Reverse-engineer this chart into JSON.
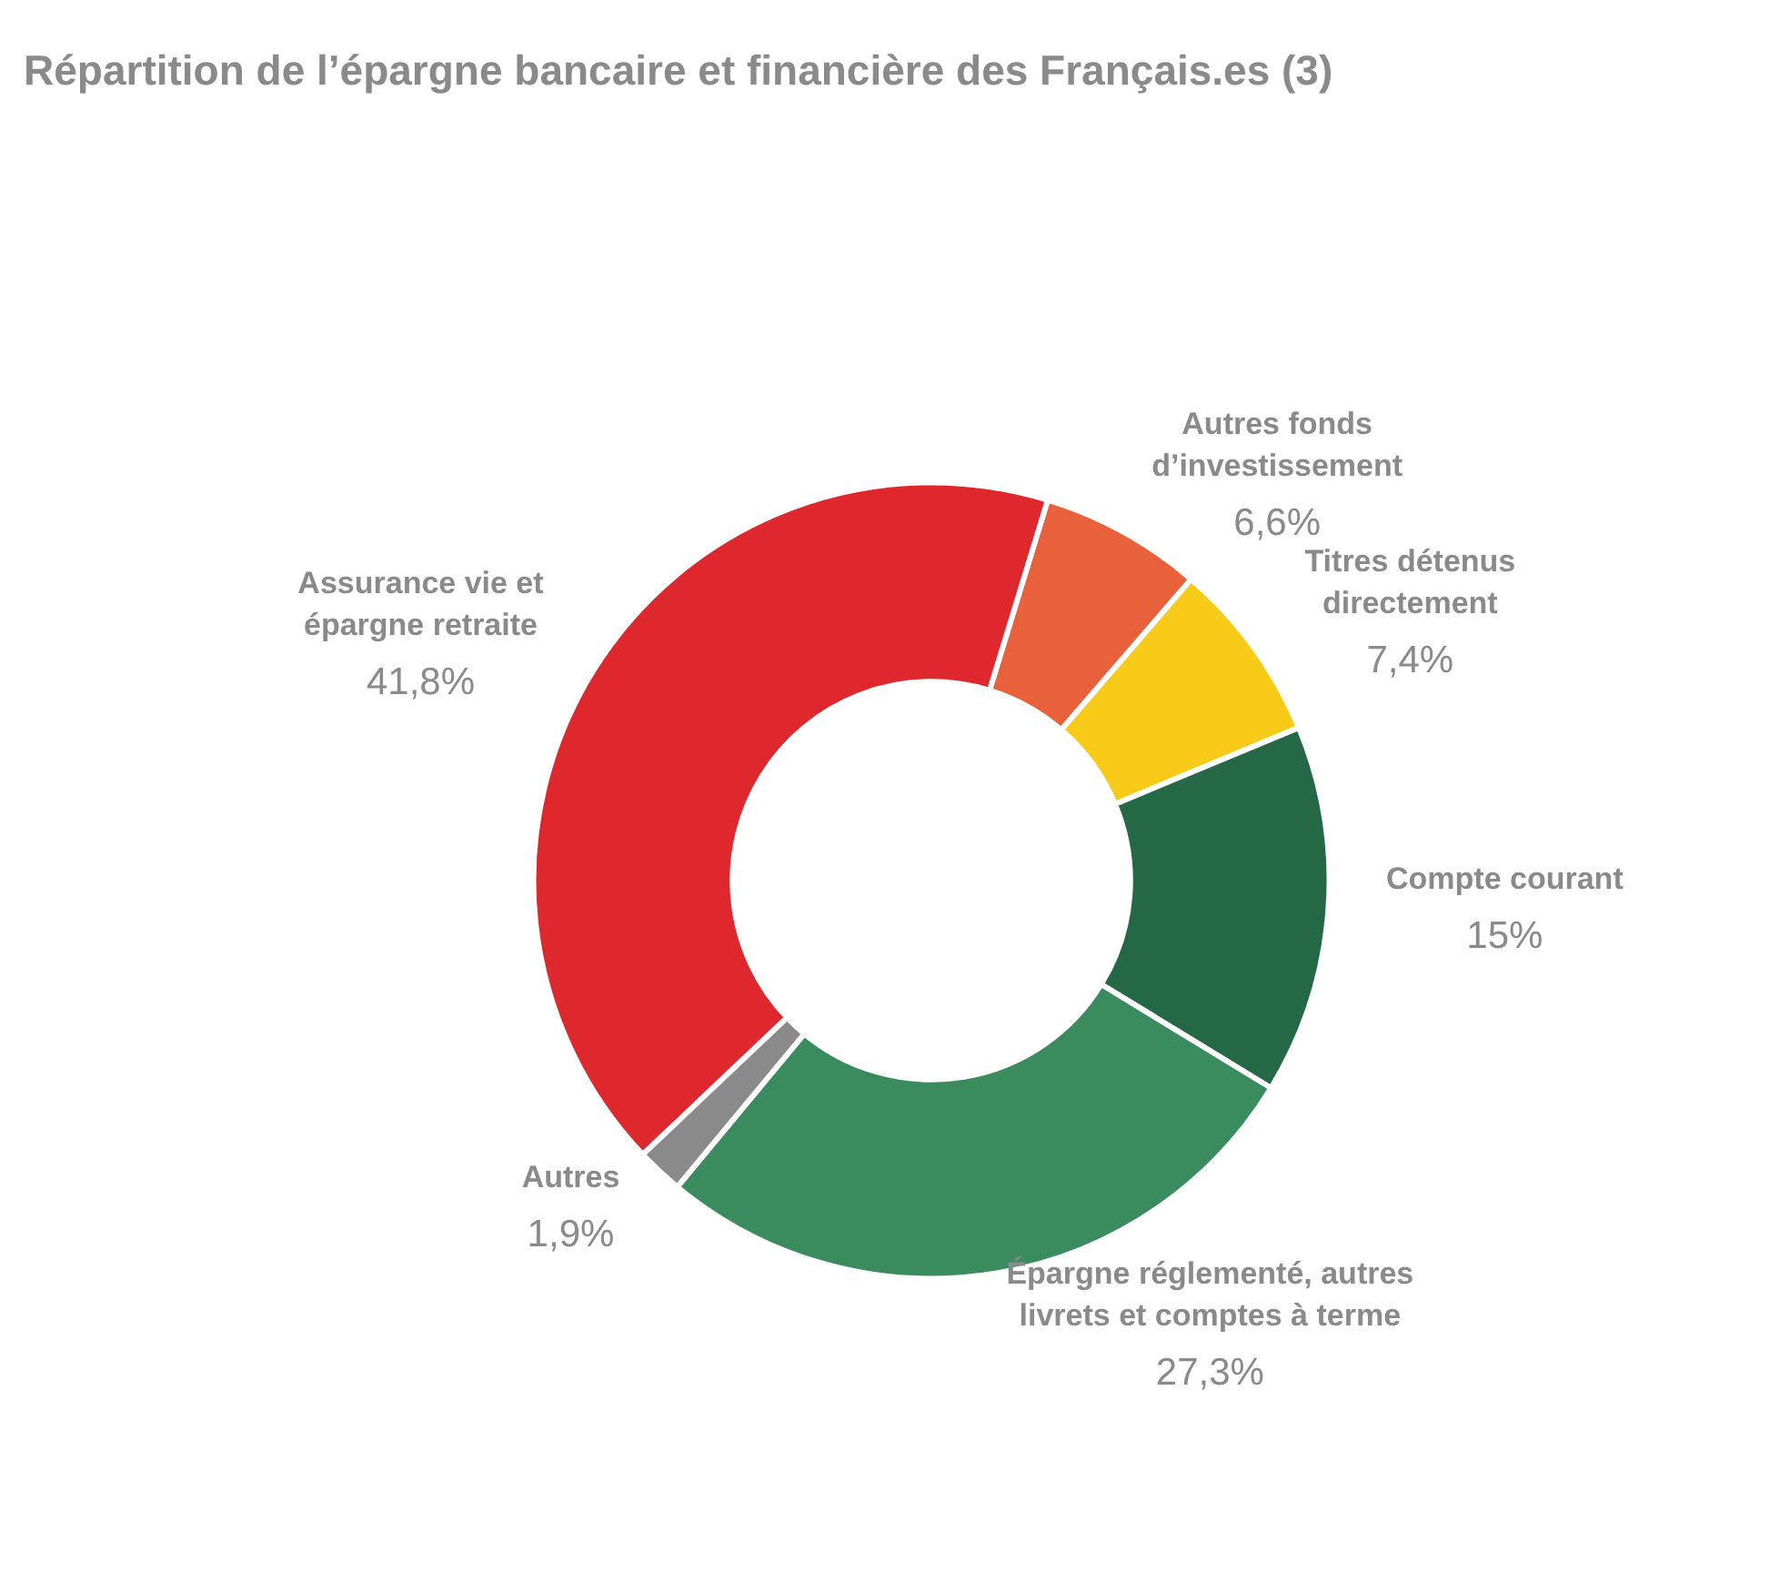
{
  "chart_data": {
    "type": "donut",
    "title": "Répartition de l’épargne bancaire et financière des Français.es (3)",
    "categories": [
      "Autres fonds d’investissement",
      "Titres détenus directement",
      "Compte courant",
      "Épargne réglementé, autres livrets et comptes à terme",
      "Autres",
      "Assurance vie et épargne retraite"
    ],
    "values": [
      6.6,
      7.4,
      15,
      27.3,
      1.9,
      41.8
    ],
    "colors": [
      "#e8613a",
      "#f7cb17",
      "#256846",
      "#3a8c5f",
      "#8a8a8a",
      "#df282d"
    ],
    "value_labels": [
      "6,6%",
      "7,4%",
      "15%",
      "27,3%",
      "1,9%",
      "41,8%"
    ],
    "legend": false
  }
}
